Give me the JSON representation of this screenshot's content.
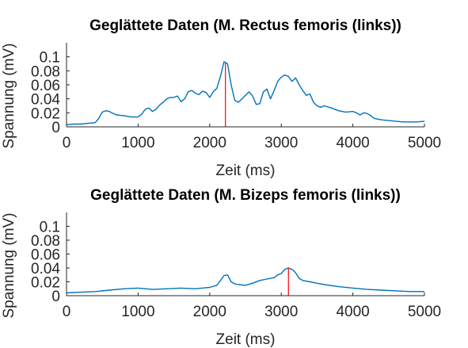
{
  "chart_data": [
    {
      "type": "line",
      "title": "Geglättete Daten (M. Rectus femoris (links))",
      "xlabel": "Zeit (ms)",
      "ylabel": "Spannung (mV)",
      "xlim": [
        0,
        5000
      ],
      "ylim": [
        0,
        0.12
      ],
      "xticks": [
        0,
        1000,
        2000,
        3000,
        4000,
        5000
      ],
      "xtick_labels": [
        "0",
        "1000",
        "2000",
        "3000",
        "4000",
        "5000"
      ],
      "yticks": [
        0,
        0.02,
        0.04,
        0.06,
        0.08,
        0.1
      ],
      "ytick_labels": [
        "0",
        "0.02",
        "0.04",
        "0.06",
        "0.08",
        "0.1"
      ],
      "grid": false,
      "series": [
        {
          "color": "#0072bd",
          "x": [
            0,
            100,
            200,
            300,
            400,
            450,
            500,
            550,
            600,
            650,
            700,
            800,
            900,
            1000,
            1050,
            1100,
            1150,
            1200,
            1250,
            1300,
            1350,
            1400,
            1450,
            1500,
            1550,
            1600,
            1650,
            1700,
            1750,
            1800,
            1850,
            1900,
            1950,
            2000,
            2050,
            2100,
            2150,
            2200,
            2250,
            2300,
            2350,
            2400,
            2450,
            2500,
            2550,
            2600,
            2650,
            2700,
            2750,
            2800,
            2850,
            2900,
            2950,
            3000,
            3050,
            3100,
            3150,
            3200,
            3250,
            3300,
            3350,
            3400,
            3450,
            3500,
            3550,
            3600,
            3700,
            3800,
            3900,
            4000,
            4050,
            4100,
            4150,
            4200,
            4250,
            4300,
            4400,
            4500,
            4600,
            4700,
            4800,
            4900,
            5000
          ],
          "y": [
            0.003,
            0.004,
            0.004,
            0.005,
            0.006,
            0.012,
            0.021,
            0.023,
            0.022,
            0.019,
            0.017,
            0.016,
            0.014,
            0.014,
            0.018,
            0.025,
            0.027,
            0.022,
            0.025,
            0.031,
            0.035,
            0.04,
            0.042,
            0.042,
            0.044,
            0.036,
            0.04,
            0.05,
            0.052,
            0.048,
            0.046,
            0.051,
            0.049,
            0.042,
            0.05,
            0.055,
            0.072,
            0.093,
            0.09,
            0.06,
            0.038,
            0.035,
            0.04,
            0.045,
            0.05,
            0.044,
            0.032,
            0.033,
            0.05,
            0.054,
            0.04,
            0.052,
            0.065,
            0.071,
            0.074,
            0.072,
            0.065,
            0.07,
            0.06,
            0.052,
            0.045,
            0.047,
            0.035,
            0.03,
            0.028,
            0.03,
            0.027,
            0.023,
            0.021,
            0.022,
            0.02,
            0.017,
            0.02,
            0.019,
            0.016,
            0.012,
            0.01,
            0.009,
            0.008,
            0.007,
            0.007,
            0.007,
            0.008
          ]
        }
      ],
      "markers": [
        {
          "color": "#ff0000",
          "x": 2220
        }
      ]
    },
    {
      "type": "line",
      "title": "Geglättete Daten (M. Bizeps femoris (links))",
      "xlabel": "Zeit (ms)",
      "ylabel": "Spannung (mV)",
      "xlim": [
        0,
        5000
      ],
      "ylim": [
        0,
        0.12
      ],
      "xticks": [
        0,
        1000,
        2000,
        3000,
        4000,
        5000
      ],
      "xtick_labels": [
        "0",
        "1000",
        "2000",
        "3000",
        "4000",
        "5000"
      ],
      "yticks": [
        0,
        0.02,
        0.04,
        0.06,
        0.08,
        0.1
      ],
      "ytick_labels": [
        "0",
        "0.02",
        "0.04",
        "0.06",
        "0.08",
        "0.1"
      ],
      "grid": false,
      "series": [
        {
          "color": "#0072bd",
          "x": [
            0,
            200,
            400,
            600,
            800,
            1000,
            1200,
            1400,
            1600,
            1800,
            2000,
            2100,
            2150,
            2200,
            2250,
            2300,
            2350,
            2400,
            2500,
            2600,
            2700,
            2800,
            2900,
            2950,
            3000,
            3050,
            3100,
            3150,
            3200,
            3250,
            3300,
            3400,
            3500,
            3600,
            3800,
            4000,
            4200,
            4400,
            4600,
            4800,
            5000
          ],
          "y": [
            0.004,
            0.005,
            0.006,
            0.008,
            0.01,
            0.011,
            0.009,
            0.01,
            0.011,
            0.01,
            0.012,
            0.015,
            0.022,
            0.029,
            0.03,
            0.02,
            0.017,
            0.016,
            0.015,
            0.018,
            0.022,
            0.024,
            0.026,
            0.03,
            0.032,
            0.038,
            0.04,
            0.038,
            0.033,
            0.025,
            0.022,
            0.02,
            0.018,
            0.016,
            0.013,
            0.011,
            0.009,
            0.008,
            0.007,
            0.006,
            0.006
          ]
        }
      ],
      "markers": [
        {
          "color": "#ff0000",
          "x": 3100
        }
      ]
    }
  ]
}
